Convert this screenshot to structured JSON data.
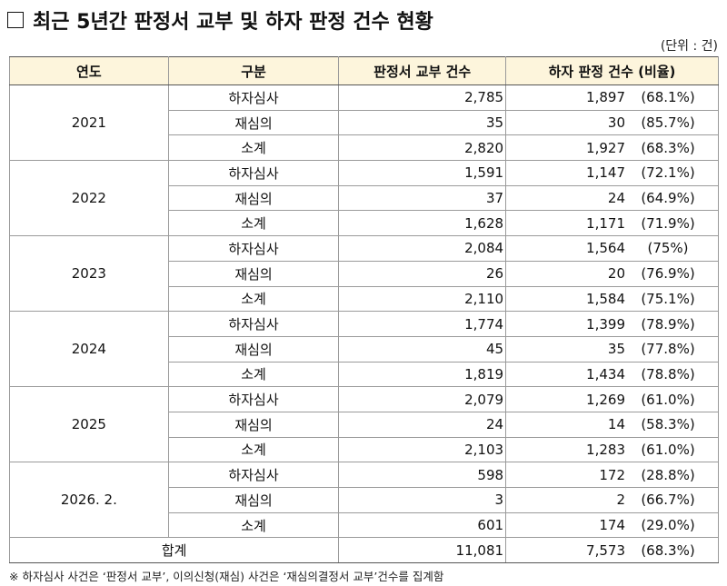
{
  "title": "최근 5년간 판정서 교부 및 하자 판정 건수 현황",
  "unit": "(단위 : 건)",
  "table": {
    "headers": [
      "연도",
      "구분",
      "판정서 교부 건수",
      "하자 판정 건수 (비율)"
    ],
    "groups": [
      {
        "year": "2021",
        "rows": [
          {
            "category": "하자심사",
            "issued": "2,785",
            "count": "1,897",
            "ratio": "(68.1%)"
          },
          {
            "category": "재심의",
            "issued": "35",
            "count": "30",
            "ratio": "(85.7%)"
          },
          {
            "category": "소계",
            "issued": "2,820",
            "count": "1,927",
            "ratio": "(68.3%)"
          }
        ]
      },
      {
        "year": "2022",
        "rows": [
          {
            "category": "하자심사",
            "issued": "1,591",
            "count": "1,147",
            "ratio": "(72.1%)"
          },
          {
            "category": "재심의",
            "issued": "37",
            "count": "24",
            "ratio": "(64.9%)"
          },
          {
            "category": "소계",
            "issued": "1,628",
            "count": "1,171",
            "ratio": "(71.9%)"
          }
        ]
      },
      {
        "year": "2023",
        "rows": [
          {
            "category": "하자심사",
            "issued": "2,084",
            "count": "1,564",
            "ratio": "(75%)"
          },
          {
            "category": "재심의",
            "issued": "26",
            "count": "20",
            "ratio": "(76.9%)"
          },
          {
            "category": "소계",
            "issued": "2,110",
            "count": "1,584",
            "ratio": "(75.1%)"
          }
        ]
      },
      {
        "year": "2024",
        "rows": [
          {
            "category": "하자심사",
            "issued": "1,774",
            "count": "1,399",
            "ratio": "(78.9%)"
          },
          {
            "category": "재심의",
            "issued": "45",
            "count": "35",
            "ratio": "(77.8%)"
          },
          {
            "category": "소계",
            "issued": "1,819",
            "count": "1,434",
            "ratio": "(78.8%)"
          }
        ]
      },
      {
        "year": "2025",
        "rows": [
          {
            "category": "하자심사",
            "issued": "2,079",
            "count": "1,269",
            "ratio": "(61.0%)"
          },
          {
            "category": "재심의",
            "issued": "24",
            "count": "14",
            "ratio": "(58.3%)"
          },
          {
            "category": "소계",
            "issued": "2,103",
            "count": "1,283",
            "ratio": "(61.0%)"
          }
        ]
      },
      {
        "year": "2026. 2.",
        "rows": [
          {
            "category": "하자심사",
            "issued": "598",
            "count": "172",
            "ratio": "(28.8%)"
          },
          {
            "category": "재심의",
            "issued": "3",
            "count": "2",
            "ratio": "(66.7%)"
          },
          {
            "category": "소계",
            "issued": "601",
            "count": "174",
            "ratio": "(29.0%)"
          }
        ]
      }
    ],
    "total": {
      "label": "합계",
      "issued": "11,081",
      "count": "7,573",
      "ratio": "(68.3%)"
    }
  },
  "note": "※ 하자심사 사건은 ‘판정서 교부’, 이의신청(재심) 사건은 ‘재심의결정서 교부’건수를 집계함",
  "colors": {
    "header_bg": "#fdf5dc",
    "border": "#9a9a9a"
  }
}
